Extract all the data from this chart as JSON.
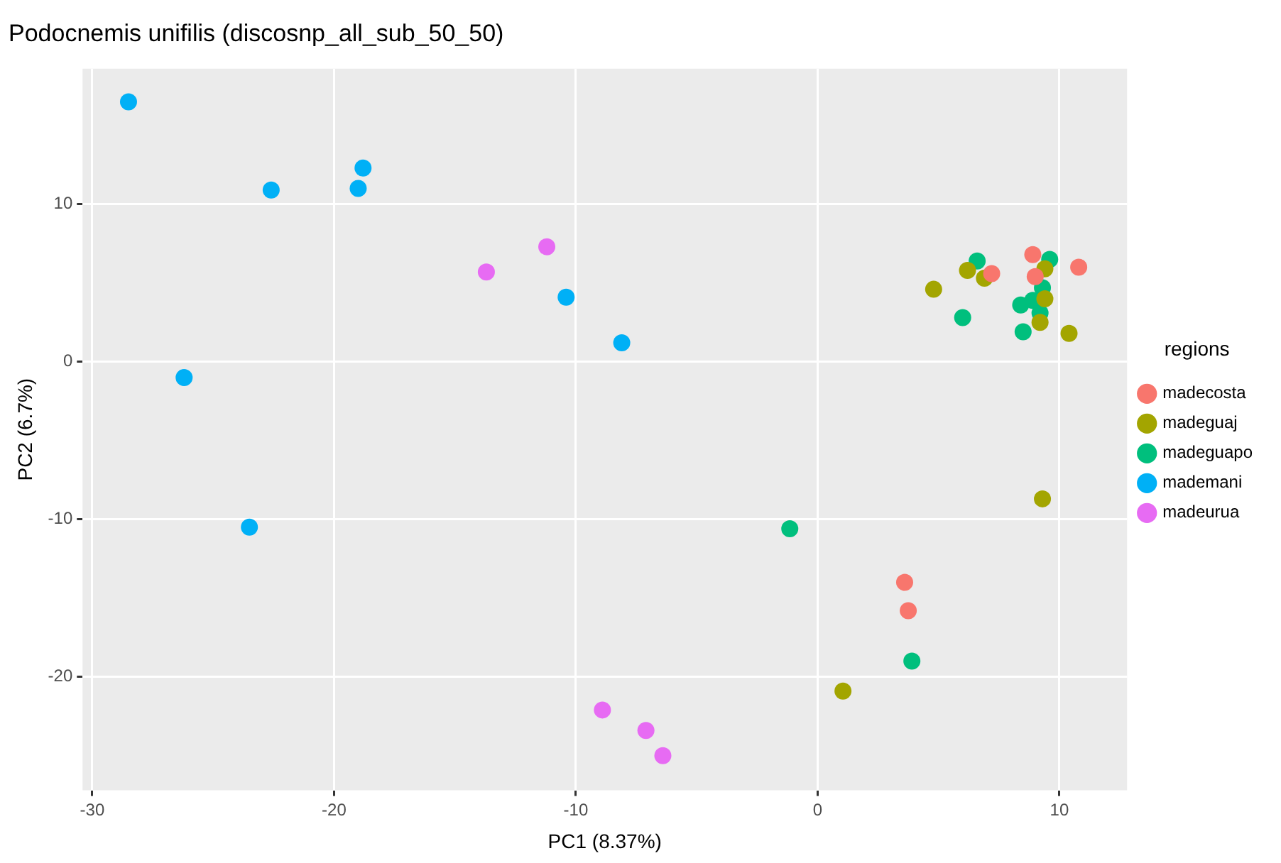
{
  "chart_data": {
    "type": "scatter",
    "title": "Podocnemis unifilis (discosnp_all_sub_50_50)",
    "xlabel": "PC1 (8.37%)",
    "ylabel": "PC2 (6.7%)",
    "legend_title": "regions",
    "legend": "right",
    "grid": true,
    "marker": "circle",
    "xlim": [
      -30.4,
      12.8
    ],
    "ylim": [
      -27.2,
      18.6
    ],
    "xticks": [
      -30,
      -20,
      -10,
      0,
      10
    ],
    "yticks": [
      -20,
      -10,
      0,
      10
    ],
    "series": [
      {
        "name": "madecosta",
        "color": "#f8766d",
        "x": [
          3.6,
          3.75,
          7.2,
          8.9,
          9.0,
          10.8
        ],
        "values": [
          -14.0,
          -15.8,
          5.6,
          6.8,
          5.4,
          6.0
        ]
      },
      {
        "name": "madeguaj",
        "color": "#a3a500",
        "x": [
          1.05,
          9.3,
          4.8,
          6.2,
          6.9,
          9.4,
          9.4,
          9.2,
          10.4
        ],
        "values": [
          -20.9,
          -8.7,
          4.6,
          5.8,
          5.3,
          5.9,
          4.0,
          2.5,
          1.8
        ]
      },
      {
        "name": "madeguapo",
        "color": "#00bf7d",
        "x": [
          -1.15,
          3.9,
          6.0,
          6.6,
          9.6,
          9.3,
          8.4,
          8.9,
          9.2,
          8.5
        ],
        "values": [
          -10.6,
          -19.0,
          2.8,
          6.4,
          6.5,
          4.7,
          3.6,
          3.9,
          3.1,
          1.9
        ]
      },
      {
        "name": "mademani",
        "color": "#00b0f6",
        "x": [
          -28.5,
          -26.2,
          -23.5,
          -22.6,
          -19.0,
          -18.8,
          -10.4,
          -8.1
        ],
        "values": [
          16.5,
          -1.0,
          -10.5,
          10.9,
          11.0,
          12.3,
          4.1,
          1.2
        ]
      },
      {
        "name": "madeurua",
        "color": "#e76bf3",
        "x": [
          -13.7,
          -11.2,
          -8.9,
          -7.1,
          -6.4
        ],
        "values": [
          5.7,
          7.3,
          -22.1,
          -23.4,
          -25.0
        ]
      }
    ]
  }
}
